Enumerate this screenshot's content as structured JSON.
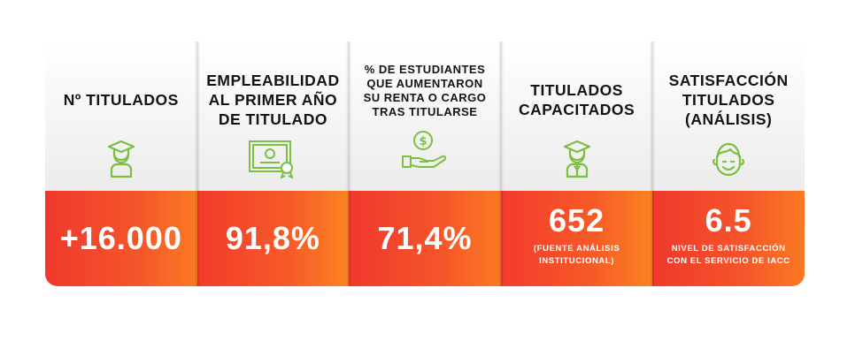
{
  "accent_color": "#7cc043",
  "stats": [
    {
      "title": "Nº TITULADOS",
      "icon": "graduate-icon",
      "value": "+16.000",
      "note": ""
    },
    {
      "title": "EMPLEABILIDAD\nAL PRIMER AÑO\nDE TITULADO",
      "icon": "certificate-icon",
      "value": "91,8%",
      "note": ""
    },
    {
      "title": "% DE ESTUDIANTES\nQUE AUMENTARON\nSU RENTA O CARGO\nTRAS TITULARSE",
      "icon": "money-hand-icon",
      "value": "71,4%",
      "note": ""
    },
    {
      "title": "TITULADOS\nCAPACITADOS",
      "icon": "graduate-icon",
      "value": "652",
      "note": "(FUENTE ANÁLISIS\nINSTITUCIONAL)"
    },
    {
      "title": "SATISFACCIÓN\nTITULADOS\n(ANÁLISIS)",
      "icon": "smiley-face-icon",
      "value": "6.5",
      "note": "NIVEL DE SATISFACCIÓN\nCON EL SERVICIO DE IACC"
    }
  ]
}
